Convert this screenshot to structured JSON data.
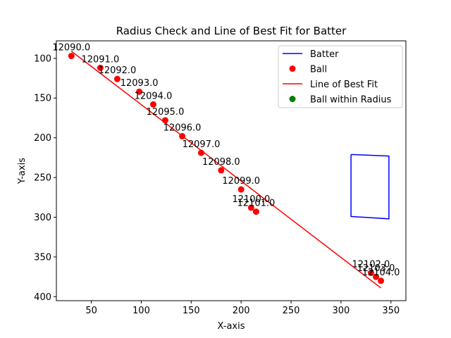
{
  "chart_data": {
    "type": "scatter",
    "title": "Radius Check and Line of Best Fit for Batter",
    "xlabel": "X-axis",
    "ylabel": "Y-axis",
    "xlim": [
      15,
      365
    ],
    "ylim": [
      405,
      78
    ],
    "y_inverted": true,
    "xticks": [
      50,
      100,
      150,
      200,
      250,
      300,
      350
    ],
    "yticks": [
      100,
      150,
      200,
      250,
      300,
      350,
      400
    ],
    "grid": false,
    "legend_position": "top-right",
    "colors": {
      "batter": "#0000ff",
      "ball": "#ff0000",
      "best_fit": "#ff0000",
      "within_radius": "#008000"
    },
    "legend": [
      {
        "label": "Batter",
        "kind": "line",
        "color": "#0000ff"
      },
      {
        "label": "Ball",
        "kind": "marker",
        "color": "#ff0000"
      },
      {
        "label": "Line of Best Fit",
        "kind": "line",
        "color": "#ff0000"
      },
      {
        "label": "Ball within Radius",
        "kind": "marker",
        "color": "#008000"
      }
    ],
    "batter": {
      "name": "Batter",
      "x": [
        310,
        348,
        348,
        310,
        310
      ],
      "y": [
        221,
        223,
        302,
        299,
        221
      ]
    },
    "ball": {
      "name": "Ball",
      "points": [
        {
          "x": 30,
          "y": 97,
          "label": "12090.0"
        },
        {
          "x": 59,
          "y": 112,
          "label": "12091.0"
        },
        {
          "x": 76,
          "y": 126,
          "label": "12092.0"
        },
        {
          "x": 98,
          "y": 142,
          "label": "12093.0"
        },
        {
          "x": 112,
          "y": 158,
          "label": "12094.0"
        },
        {
          "x": 124,
          "y": 178,
          "label": "12095.0"
        },
        {
          "x": 141,
          "y": 198,
          "label": "12096.0"
        },
        {
          "x": 160,
          "y": 219,
          "label": "12097.0"
        },
        {
          "x": 180,
          "y": 241,
          "label": "12098.0"
        },
        {
          "x": 200,
          "y": 265,
          "label": "12099.0"
        },
        {
          "x": 210,
          "y": 288,
          "label": "12100.0"
        },
        {
          "x": 215,
          "y": 293,
          "label": "12101.0"
        },
        {
          "x": 330,
          "y": 370,
          "label": "12102.0"
        },
        {
          "x": 335,
          "y": 375,
          "label": "12103.0"
        },
        {
          "x": 340,
          "y": 380,
          "label": "12104.0"
        }
      ]
    },
    "best_fit": {
      "name": "Line of Best Fit",
      "x": [
        30,
        340
      ],
      "y": [
        91,
        389
      ]
    }
  }
}
